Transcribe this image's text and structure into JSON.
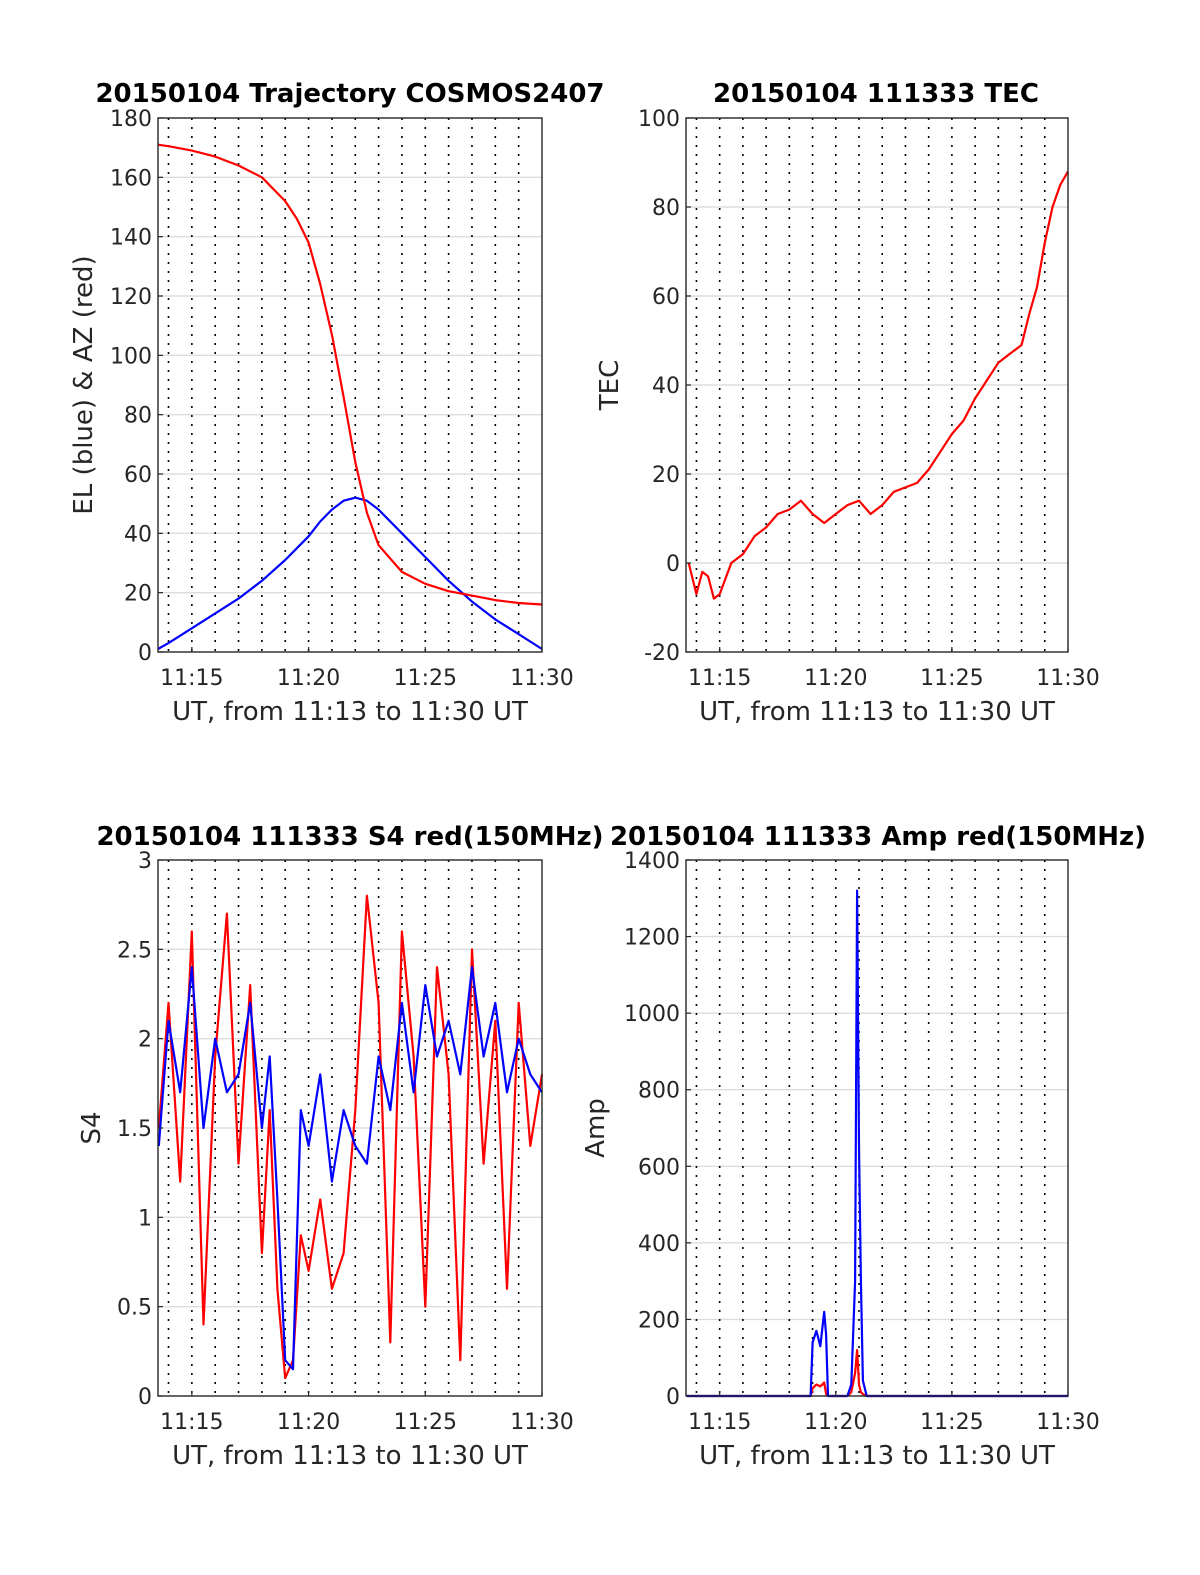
{
  "colors": {
    "el": "#0000ff",
    "az": "#ff0000",
    "tec": "#ff0000",
    "s4_red": "#ff0000",
    "s4_blue": "#0000ff",
    "amp_red": "#ff0000",
    "amp_blue": "#0000ff"
  },
  "chart_data": [
    {
      "id": "trajectory",
      "type": "line",
      "title": "20150104 Trajectory COSMOS2407",
      "xlabel": "UT, from 11:13 to 11:30 UT",
      "ylabel": "EL (blue) & AZ (red)",
      "xlim": [
        "11:13:33",
        "11:30:00"
      ],
      "ylim": [
        0,
        180
      ],
      "xticks": [
        "11:15",
        "11:20",
        "11:25",
        "11:30"
      ],
      "yticks": [
        "0",
        "20",
        "40",
        "60",
        "80",
        "100",
        "120",
        "140",
        "160",
        "180"
      ],
      "x_gridlines_minutes": 1,
      "grid": true,
      "x": [
        "11:13:33",
        "11:14:00",
        "11:15:00",
        "11:16:00",
        "11:17:00",
        "11:18:00",
        "11:19:00",
        "11:19:30",
        "11:20:00",
        "11:20:30",
        "11:21:00",
        "11:21:30",
        "11:22:00",
        "11:22:30",
        "11:23:00",
        "11:24:00",
        "11:25:00",
        "11:26:00",
        "11:27:00",
        "11:28:00",
        "11:29:00",
        "11:30:00"
      ],
      "series": [
        {
          "values": [
            1,
            3,
            8,
            13,
            18,
            24,
            31,
            35,
            39,
            44,
            48,
            51,
            52,
            51,
            48,
            40,
            32,
            24,
            17,
            11,
            6,
            1
          ]
        },
        {
          "values": [
            171,
            170.5,
            169,
            167,
            164,
            160,
            152,
            146,
            138,
            124,
            107,
            86,
            64,
            47,
            36,
            27,
            23,
            20.5,
            19,
            17.5,
            16.5,
            16
          ]
        }
      ]
    },
    {
      "id": "tec",
      "type": "line",
      "title": "20150104 111333 TEC",
      "xlabel": "UT, from 11:13 to 11:30 UT",
      "ylabel": "TEC",
      "xlim": [
        "11:13:33",
        "11:30:00"
      ],
      "ylim": [
        -20,
        100
      ],
      "xticks": [
        "11:15",
        "11:20",
        "11:25",
        "11:30"
      ],
      "yticks": [
        "-20",
        "0",
        "20",
        "40",
        "60",
        "80",
        "100"
      ],
      "x_gridlines_minutes": 1,
      "grid": true,
      "x": [
        "11:13:40",
        "11:14:00",
        "11:14:15",
        "11:14:30",
        "11:14:45",
        "11:15:00",
        "11:15:30",
        "11:16:00",
        "11:16:30",
        "11:17:00",
        "11:17:30",
        "11:18:00",
        "11:18:30",
        "11:19:00",
        "11:19:30",
        "11:20:00",
        "11:20:30",
        "11:21:00",
        "11:21:30",
        "11:22:00",
        "11:22:30",
        "11:23:00",
        "11:23:30",
        "11:24:00",
        "11:24:30",
        "11:25:00",
        "11:25:30",
        "11:26:00",
        "11:26:30",
        "11:27:00",
        "11:27:30",
        "11:28:00",
        "11:28:20",
        "11:28:40",
        "11:29:00",
        "11:29:20",
        "11:29:40",
        "11:30:00"
      ],
      "series": [
        {
          "values": [
            0,
            -7,
            -2,
            -3,
            -8,
            -7,
            0,
            2,
            6,
            8,
            11,
            12,
            14,
            11,
            9,
            11,
            13,
            14,
            11,
            13,
            16,
            17,
            18,
            21,
            25,
            29,
            32,
            37,
            41,
            45,
            47,
            49,
            56,
            62,
            72,
            80,
            85,
            88
          ]
        }
      ]
    },
    {
      "id": "s4",
      "type": "line",
      "title": "20150104 111333 S4 red(150MHz)",
      "xlabel": "UT, from 11:13 to 11:30 UT",
      "ylabel": "S4",
      "xlim": [
        "11:13:33",
        "11:30:00"
      ],
      "ylim": [
        0,
        3
      ],
      "xticks": [
        "11:15",
        "11:20",
        "11:25",
        "11:30"
      ],
      "yticks": [
        "0",
        "0.5",
        "1",
        "1.5",
        "2",
        "2.5",
        "3"
      ],
      "x_gridlines_minutes": 1,
      "grid": true,
      "x": [
        "11:13:35",
        "11:14:00",
        "11:14:30",
        "11:15:00",
        "11:15:30",
        "11:16:00",
        "11:16:30",
        "11:17:00",
        "11:17:30",
        "11:18:00",
        "11:18:20",
        "11:18:40",
        "11:19:00",
        "11:19:20",
        "11:19:40",
        "11:20:00",
        "11:20:30",
        "11:21:00",
        "11:21:30",
        "11:22:00",
        "11:22:30",
        "11:23:00",
        "11:23:30",
        "11:24:00",
        "11:24:30",
        "11:25:00",
        "11:25:30",
        "11:26:00",
        "11:26:30",
        "11:27:00",
        "11:27:30",
        "11:28:00",
        "11:28:30",
        "11:29:00",
        "11:29:30",
        "11:30:00"
      ],
      "series": [
        {
          "values": [
            1.5,
            2.2,
            1.2,
            2.6,
            0.4,
            1.9,
            2.7,
            1.3,
            2.3,
            0.8,
            1.6,
            0.6,
            0.1,
            0.2,
            0.9,
            0.7,
            1.1,
            0.6,
            0.8,
            1.6,
            2.8,
            2.2,
            0.3,
            2.6,
            1.9,
            0.5,
            2.4,
            1.8,
            0.2,
            2.5,
            1.3,
            2.1,
            0.6,
            2.2,
            1.4,
            1.8
          ]
        },
        {
          "values": [
            1.4,
            2.1,
            1.7,
            2.4,
            1.5,
            2.0,
            1.7,
            1.8,
            2.2,
            1.5,
            1.9,
            1.1,
            0.2,
            0.15,
            1.6,
            1.4,
            1.8,
            1.2,
            1.6,
            1.4,
            1.3,
            1.9,
            1.6,
            2.2,
            1.7,
            2.3,
            1.9,
            2.1,
            1.8,
            2.4,
            1.9,
            2.2,
            1.7,
            2.0,
            1.8,
            1.7
          ]
        }
      ]
    },
    {
      "id": "amp",
      "type": "line",
      "title": "20150104 111333 Amp red(150MHz)",
      "xlabel": "UT, from 11:13 to 11:30 UT",
      "ylabel": "Amp",
      "xlim": [
        "11:13:33",
        "11:30:00"
      ],
      "ylim": [
        0,
        1400
      ],
      "xticks": [
        "11:15",
        "11:20",
        "11:25",
        "11:30"
      ],
      "yticks": [
        "0",
        "200",
        "400",
        "600",
        "800",
        "1000",
        "1200",
        "1400"
      ],
      "x_gridlines_minutes": 1,
      "grid": true,
      "x": [
        "11:13:35",
        "11:18:55",
        "11:19:00",
        "11:19:10",
        "11:19:20",
        "11:19:30",
        "11:19:35",
        "11:19:40",
        "11:20:30",
        "11:20:40",
        "11:20:50",
        "11:20:55",
        "11:21:00",
        "11:21:05",
        "11:21:10",
        "11:21:20",
        "11:30:00"
      ],
      "series": [
        {
          "values": [
            0,
            0,
            20,
            30,
            25,
            35,
            5,
            0,
            0,
            10,
            60,
            120,
            30,
            10,
            5,
            0,
            0
          ]
        },
        {
          "values": [
            0,
            0,
            140,
            170,
            130,
            220,
            160,
            0,
            0,
            30,
            300,
            1320,
            650,
            300,
            40,
            0,
            0
          ]
        }
      ]
    }
  ]
}
